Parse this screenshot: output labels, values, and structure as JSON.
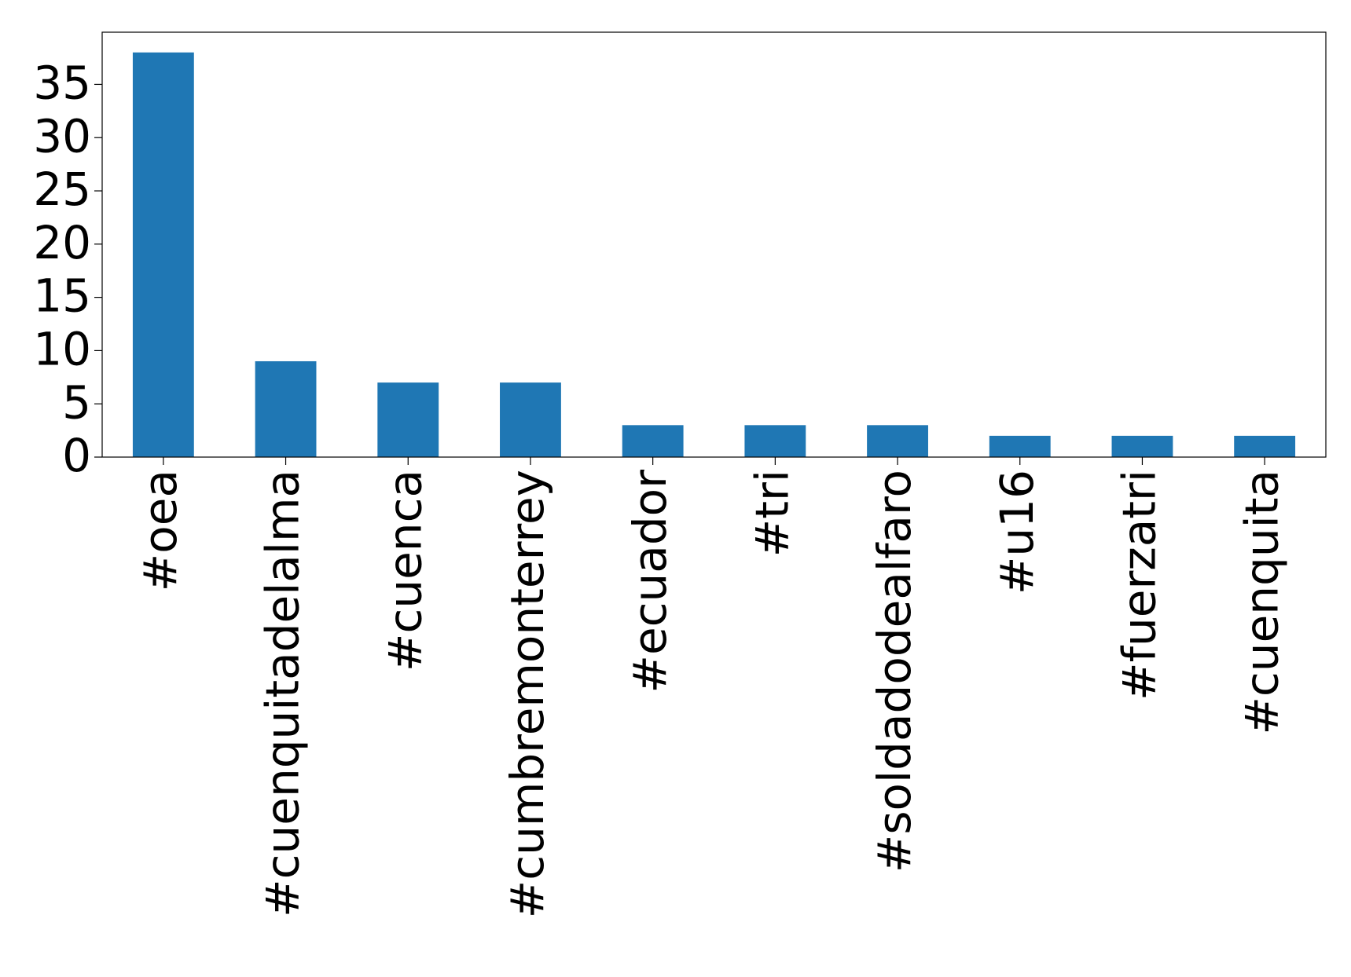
{
  "chart_data": {
    "type": "bar",
    "categories": [
      "#oea",
      "#cuenquitadelalma",
      "#cuenca",
      "#cumbremonterrey",
      "#ecuador",
      "#tri",
      "#soldadodealfaro",
      "#u16",
      "#fuerzatri",
      "#cuenquita"
    ],
    "values": [
      38,
      9,
      7,
      7,
      3,
      3,
      3,
      2,
      2,
      2
    ],
    "color": "#1f77b4",
    "ylim": [
      0,
      39.9
    ],
    "yticks": [
      0,
      5,
      10,
      15,
      20,
      25,
      30,
      35
    ],
    "grid": false
  }
}
